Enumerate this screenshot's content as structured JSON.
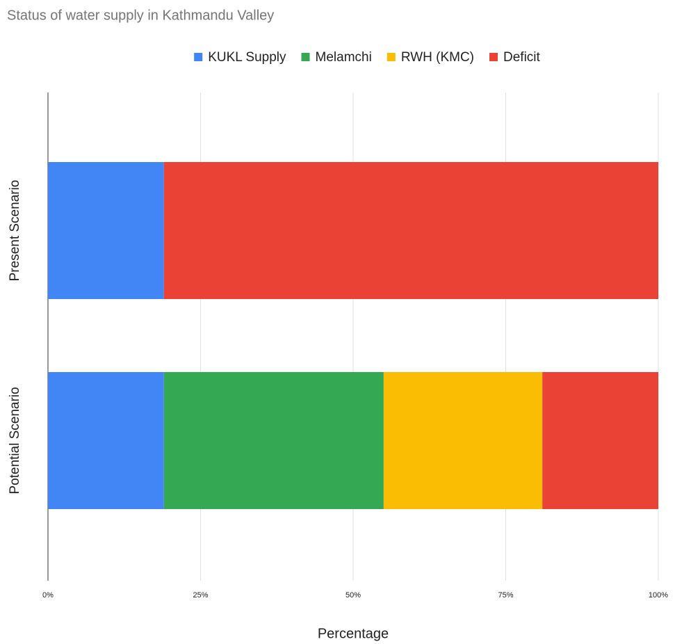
{
  "chart_data": {
    "type": "stacked-bar-horizontal",
    "title": "Status of water supply in Kathmandu Valley",
    "xlabel": "Percentage",
    "categories": [
      "Present Scenario",
      "Potential Scenario"
    ],
    "series": [
      {
        "name": "KUKL Supply",
        "color": "#4285f4",
        "values": [
          19,
          19
        ]
      },
      {
        "name": "Melamchi",
        "color": "#34a853",
        "values": [
          0,
          36
        ]
      },
      {
        "name": "RWH (KMC)",
        "color": "#fbbc04",
        "values": [
          0,
          26
        ]
      },
      {
        "name": "Deficit",
        "color": "#ea4335",
        "values": [
          81,
          19
        ]
      }
    ],
    "xlim": [
      0,
      100
    ],
    "xticks": [
      {
        "value": 0,
        "label": "0%"
      },
      {
        "value": 25,
        "label": "25%"
      },
      {
        "value": 50,
        "label": "50%"
      },
      {
        "value": 75,
        "label": "75%"
      },
      {
        "value": 100,
        "label": "100%"
      }
    ],
    "grid": true,
    "legend": "top"
  }
}
